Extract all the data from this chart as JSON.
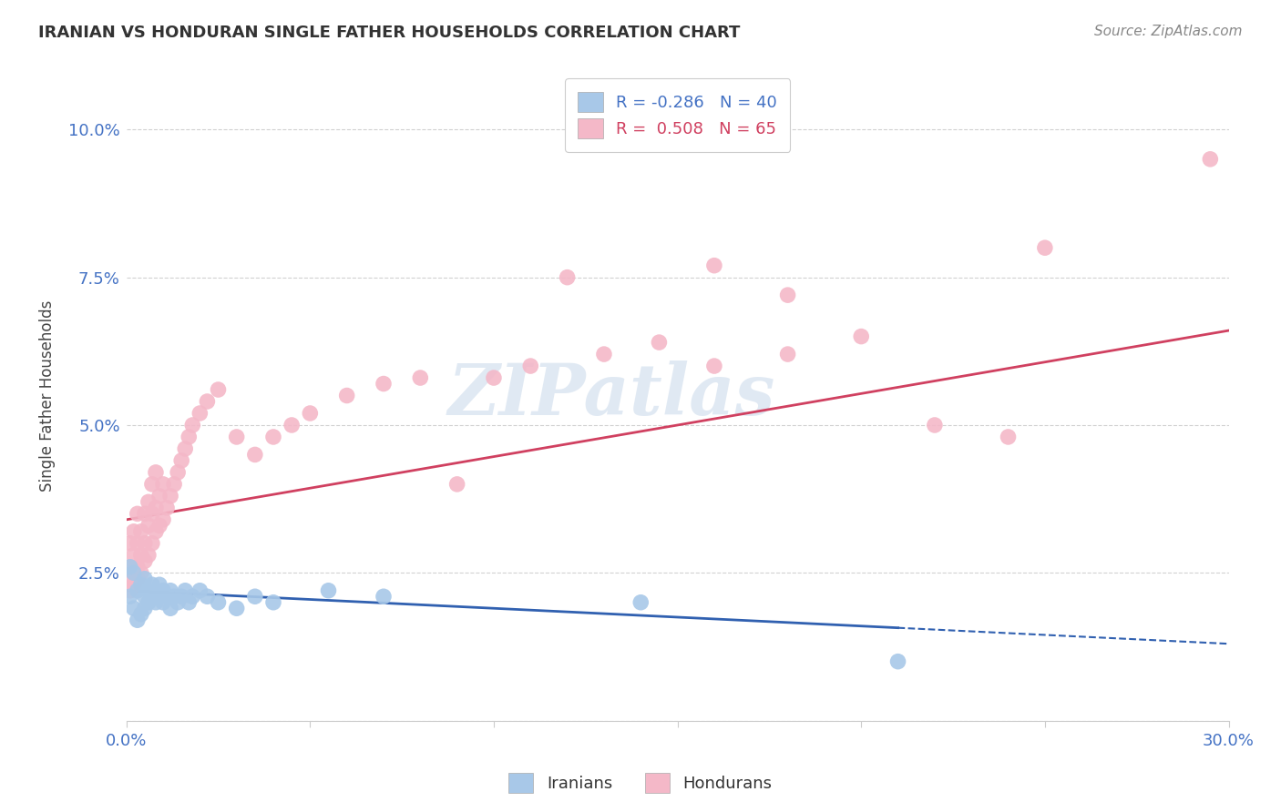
{
  "title": "IRANIAN VS HONDURAN SINGLE FATHER HOUSEHOLDS CORRELATION CHART",
  "source": "Source: ZipAtlas.com",
  "ylabel": "Single Father Households",
  "xlim": [
    0.0,
    0.3
  ],
  "ylim": [
    0.0,
    0.11
  ],
  "xticks": [
    0.0,
    0.05,
    0.1,
    0.15,
    0.2,
    0.25,
    0.3
  ],
  "xticklabels": [
    "0.0%",
    "",
    "",
    "",
    "",
    "",
    "30.0%"
  ],
  "yticks": [
    0.0,
    0.025,
    0.05,
    0.075,
    0.1
  ],
  "yticklabels": [
    "",
    "2.5%",
    "5.0%",
    "7.5%",
    "10.0%"
  ],
  "legend_blue_r": "-0.286",
  "legend_blue_n": "40",
  "legend_pink_r": "0.508",
  "legend_pink_n": "65",
  "blue_color": "#a8c8e8",
  "pink_color": "#f4b8c8",
  "blue_line_color": "#3060b0",
  "pink_line_color": "#d04060",
  "grid_color": "#cccccc",
  "background_color": "#ffffff",
  "watermark": "ZIPatlas",
  "blue_line_x0": 0.0,
  "blue_line_y0": 0.022,
  "blue_line_x1": 0.3,
  "blue_line_y1": 0.013,
  "blue_solid_cutoff": 0.21,
  "pink_line_x0": 0.0,
  "pink_line_y0": 0.034,
  "pink_line_x1": 0.3,
  "pink_line_y1": 0.066,
  "iranians_x": [
    0.001,
    0.001,
    0.002,
    0.002,
    0.003,
    0.003,
    0.004,
    0.004,
    0.005,
    0.005,
    0.005,
    0.006,
    0.006,
    0.007,
    0.007,
    0.008,
    0.008,
    0.009,
    0.009,
    0.01,
    0.01,
    0.011,
    0.012,
    0.012,
    0.013,
    0.014,
    0.015,
    0.016,
    0.017,
    0.018,
    0.02,
    0.022,
    0.025,
    0.03,
    0.035,
    0.04,
    0.055,
    0.07,
    0.21,
    0.14
  ],
  "iranians_y": [
    0.026,
    0.021,
    0.025,
    0.019,
    0.022,
    0.017,
    0.023,
    0.018,
    0.024,
    0.021,
    0.019,
    0.022,
    0.02,
    0.023,
    0.021,
    0.02,
    0.022,
    0.021,
    0.023,
    0.022,
    0.02,
    0.021,
    0.019,
    0.022,
    0.021,
    0.02,
    0.021,
    0.022,
    0.02,
    0.021,
    0.022,
    0.021,
    0.02,
    0.019,
    0.021,
    0.02,
    0.022,
    0.021,
    0.01,
    0.02
  ],
  "hondurans_x": [
    0.001,
    0.001,
    0.001,
    0.001,
    0.002,
    0.002,
    0.002,
    0.002,
    0.003,
    0.003,
    0.003,
    0.003,
    0.004,
    0.004,
    0.004,
    0.005,
    0.005,
    0.005,
    0.006,
    0.006,
    0.006,
    0.007,
    0.007,
    0.007,
    0.008,
    0.008,
    0.008,
    0.009,
    0.009,
    0.01,
    0.01,
    0.011,
    0.012,
    0.013,
    0.014,
    0.015,
    0.016,
    0.017,
    0.018,
    0.02,
    0.022,
    0.025,
    0.03,
    0.035,
    0.04,
    0.045,
    0.05,
    0.06,
    0.07,
    0.08,
    0.09,
    0.1,
    0.11,
    0.13,
    0.145,
    0.16,
    0.18,
    0.2,
    0.22,
    0.24,
    0.12,
    0.16,
    0.18,
    0.25,
    0.295
  ],
  "hondurans_y": [
    0.022,
    0.024,
    0.026,
    0.03,
    0.023,
    0.025,
    0.028,
    0.032,
    0.024,
    0.026,
    0.03,
    0.035,
    0.025,
    0.028,
    0.032,
    0.027,
    0.03,
    0.035,
    0.028,
    0.033,
    0.037,
    0.03,
    0.035,
    0.04,
    0.032,
    0.036,
    0.042,
    0.033,
    0.038,
    0.034,
    0.04,
    0.036,
    0.038,
    0.04,
    0.042,
    0.044,
    0.046,
    0.048,
    0.05,
    0.052,
    0.054,
    0.056,
    0.048,
    0.045,
    0.048,
    0.05,
    0.052,
    0.055,
    0.057,
    0.058,
    0.04,
    0.058,
    0.06,
    0.062,
    0.064,
    0.06,
    0.062,
    0.065,
    0.05,
    0.048,
    0.075,
    0.077,
    0.072,
    0.08,
    0.095
  ]
}
